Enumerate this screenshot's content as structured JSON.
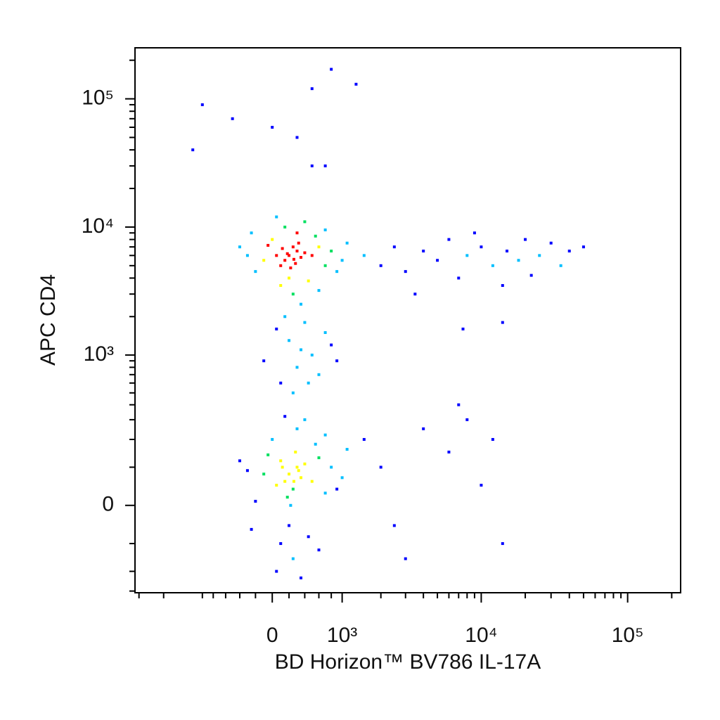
{
  "chart_data": {
    "type": "scatter",
    "x_label": "BD Horizon™ BV786 IL-17A",
    "y_label": "APC CD4",
    "xscale": "biexponential",
    "yscale": "biexponential",
    "density_colors": [
      "#0000ff",
      "#00bfff",
      "#00e060",
      "#ffff00",
      "#ff0000"
    ],
    "xlim": [
      -3200,
      230000
    ],
    "ylim": [
      -310,
      250000
    ],
    "xticks": [
      0,
      {
        "value": 1000,
        "label": "10³"
      },
      {
        "value": 10000,
        "label": "10⁴"
      },
      {
        "value": 100000,
        "label": "10⁵"
      }
    ],
    "yticks": [
      0,
      {
        "value": 1000,
        "label": "10³"
      },
      {
        "value": 10000,
        "label": "10⁴"
      },
      {
        "value": 100000,
        "label": "10⁵"
      }
    ],
    "xminor": [
      -3000,
      -2000,
      -1000,
      -800,
      -600,
      -400,
      -200,
      200,
      400,
      600,
      800,
      2000,
      3000,
      4000,
      5000,
      6000,
      7000,
      8000,
      9000,
      20000,
      30000,
      40000,
      50000,
      60000,
      70000,
      80000,
      90000,
      200000
    ],
    "yminor": [
      -300,
      -200,
      -100,
      100,
      200,
      300,
      400,
      500,
      600,
      700,
      800,
      900,
      2000,
      3000,
      4000,
      5000,
      6000,
      7000,
      8000,
      9000,
      20000,
      30000,
      40000,
      50000,
      60000,
      70000,
      80000,
      90000,
      200000
    ],
    "x": [
      200,
      150,
      300,
      250,
      100,
      350,
      180,
      280,
      220,
      320,
      50,
      400,
      -100,
      500,
      600,
      700,
      -300,
      0,
      300,
      200,
      100,
      450,
      800,
      900,
      -200,
      -400,
      150,
      400,
      250,
      600,
      1000,
      1100,
      -250,
      50,
      700,
      350,
      550,
      -50,
      120,
      260,
      200,
      150,
      300,
      250,
      100,
      350,
      180,
      280,
      220,
      320,
      50,
      400,
      -100,
      500,
      600,
      700,
      -300,
      0,
      300,
      200,
      100,
      450,
      800,
      900,
      -200,
      -400,
      150,
      400,
      250,
      600,
      1000,
      1100,
      -250,
      50,
      700,
      350,
      550,
      -50,
      120,
      260,
      100,
      300,
      500,
      200,
      400,
      600,
      -100,
      700,
      250,
      150,
      800,
      350,
      50,
      450,
      900,
      1500,
      2000,
      2500,
      3000,
      4000,
      5000,
      6000,
      7000,
      8000,
      10000,
      12000,
      15000,
      18000,
      20000,
      25000,
      30000,
      35000,
      40000,
      50000,
      14000,
      9000,
      22000,
      3500,
      7500,
      14000,
      1500,
      2000,
      3000,
      4000,
      6000,
      8000,
      10000,
      12000,
      14000,
      2500,
      7000,
      -1000,
      -500,
      0,
      300,
      500,
      700,
      800,
      1300,
      500,
      -1200
    ],
    "y": [
      6000,
      5500,
      6500,
      7000,
      5000,
      5800,
      6200,
      5200,
      4800,
      7500,
      6000,
      6300,
      5500,
      6000,
      7000,
      5000,
      6000,
      8000,
      9000,
      4000,
      3500,
      3800,
      6500,
      4500,
      4500,
      7000,
      10000,
      11000,
      3000,
      3200,
      5500,
      7500,
      9000,
      12000,
      9500,
      2500,
      8500,
      7200,
      6800,
      5600,
      80,
      60,
      100,
      40,
      120,
      70,
      20,
      150,
      0,
      90,
      50,
      110,
      80,
      60,
      130,
      30,
      90,
      200,
      250,
      -50,
      -100,
      -80,
      100,
      40,
      10,
      120,
      320,
      300,
      -150,
      -120,
      70,
      160,
      -60,
      -200,
      220,
      -230,
      180,
      140,
      100,
      60,
      600,
      800,
      1000,
      1300,
      1800,
      700,
      900,
      1500,
      500,
      2000,
      1200,
      1100,
      1600,
      600,
      900,
      6000,
      5000,
      7000,
      4500,
      6500,
      5500,
      8000,
      4000,
      6000,
      7000,
      5000,
      6500,
      5500,
      8000,
      6000,
      7500,
      5000,
      6500,
      7000,
      3500,
      9000,
      4200,
      3000,
      1600,
      1800,
      200,
      100,
      -150,
      250,
      150,
      300,
      50,
      200,
      -100,
      -50,
      400,
      90000,
      70000,
      60000,
      50000,
      30000,
      30000,
      170000,
      130000,
      120000,
      40000
    ]
  }
}
